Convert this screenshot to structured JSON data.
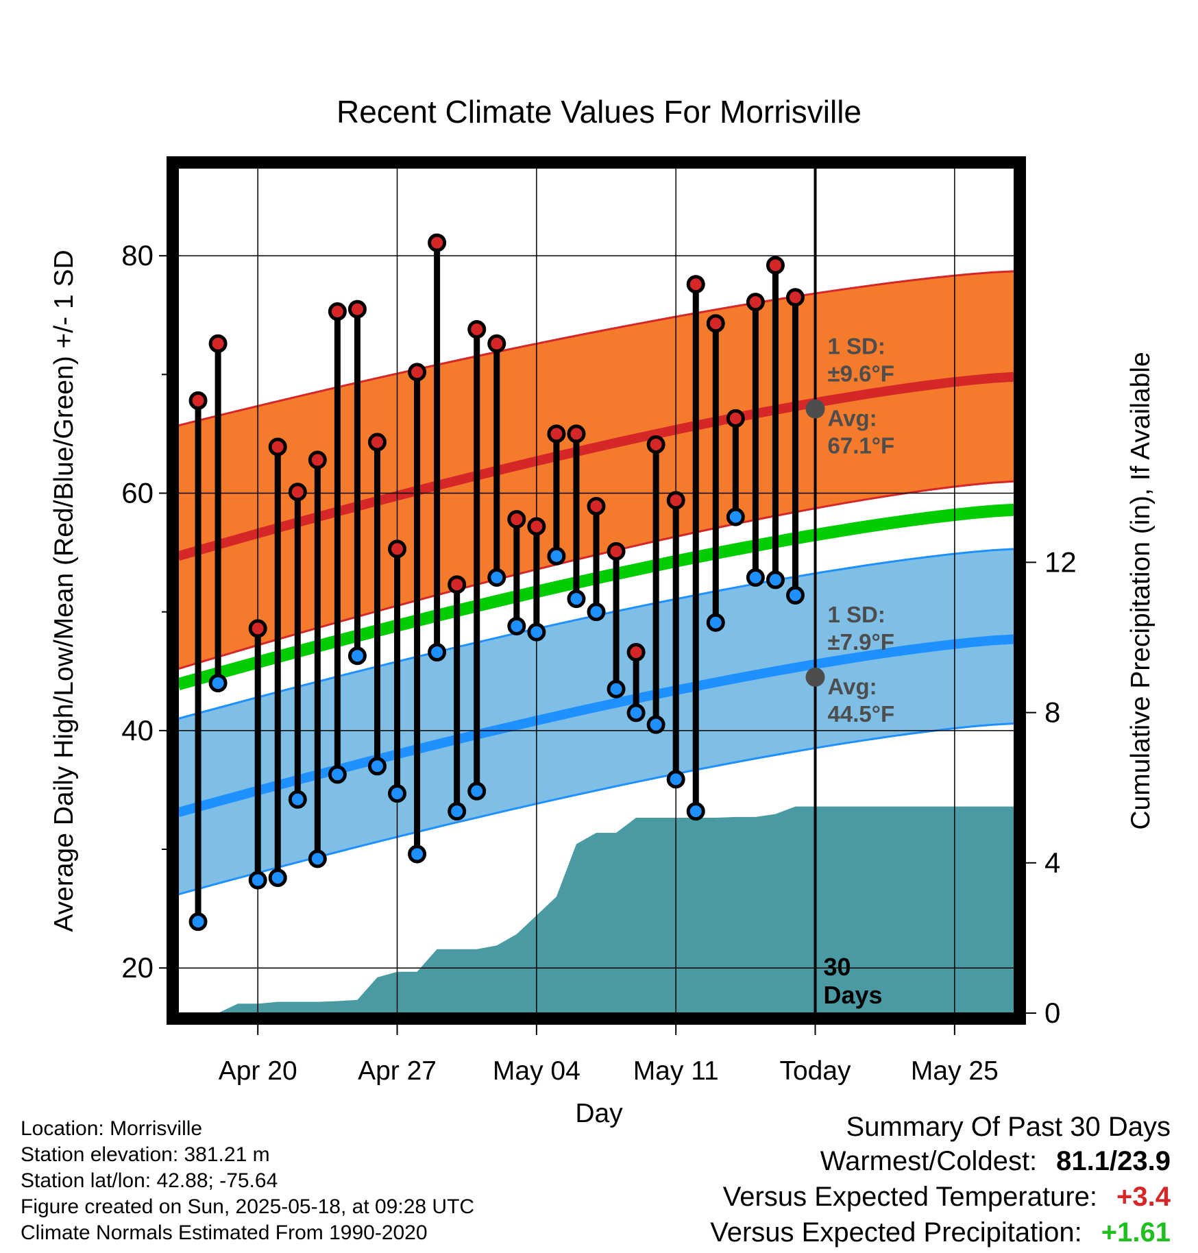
{
  "chart_data": {
    "type": "line",
    "title": "Recent Climate Values For Morrisville",
    "xlabel": "Day",
    "ylabel": "Average Daily High/Low/Mean (Red/Blue/Green) +/- 1 SD",
    "y2label": "Cumulative Precipitation (in), If Available",
    "ylim": [
      16.2,
      87.4
    ],
    "y2lim": [
      0,
      22.5
    ],
    "yticks": [
      "20",
      "40",
      "60",
      "80"
    ],
    "y2ticks": [
      "0",
      "4",
      "8",
      "12"
    ],
    "xlim": [
      "2025-04-16",
      "2025-05-28"
    ],
    "xtick_labels": [
      {
        "date": "2025-04-20",
        "label": "Apr 20"
      },
      {
        "date": "2025-04-27",
        "label": "Apr 27"
      },
      {
        "date": "2025-05-04",
        "label": "May 04"
      },
      {
        "date": "2025-05-11",
        "label": "May 11"
      },
      {
        "date": "2025-05-18",
        "label": "Today"
      },
      {
        "date": "2025-05-25",
        "label": "May 25"
      }
    ],
    "today": "2025-05-18",
    "days_label": "30\nDays",
    "colors": {
      "high": "#d62728",
      "low": "#1e90ff",
      "mean": "#00cc00",
      "high_band": "#f47a2c",
      "low_band": "#7fbfe6",
      "precip": "#4a9aa3",
      "marker_avg": "#4d4d4d",
      "annotation": "#4d4d4d"
    },
    "normal_high": {
      "avg_start": 54.7,
      "avg_end": 69.8,
      "upper_start": 65.7,
      "upper_end": 78.7,
      "lower_start": 45.2,
      "lower_end": 61.0
    },
    "normal_low": {
      "avg_start": 33.1,
      "avg_end": 47.7,
      "upper_start": 41.0,
      "upper_end": 55.3,
      "lower_start": 26.2,
      "lower_end": 40.6
    },
    "normal_mean": {
      "start": 43.9,
      "end": 58.6
    },
    "annotations": {
      "high_sd": "1 SD:",
      "high_sd_val": "±9.6°F",
      "high_avg": "Avg:",
      "high_avg_val": "67.1°F",
      "high_avg_value": 67.1,
      "low_sd": "1 SD:",
      "low_sd_val": "±7.9°F",
      "low_avg": "Avg:",
      "low_avg_val": "44.5°F",
      "low_avg_value": 44.5
    },
    "daily": [
      {
        "date": "2025-04-17",
        "high": 67.8,
        "low": 23.9
      },
      {
        "date": "2025-04-18",
        "high": 72.6,
        "low": 44.0
      },
      {
        "date": "2025-04-20",
        "high": 48.6,
        "low": 27.4
      },
      {
        "date": "2025-04-21",
        "high": 63.9,
        "low": 27.6
      },
      {
        "date": "2025-04-22",
        "high": 60.1,
        "low": 34.2
      },
      {
        "date": "2025-04-23",
        "high": 62.8,
        "low": 29.2
      },
      {
        "date": "2025-04-24",
        "high": 75.3,
        "low": 36.3
      },
      {
        "date": "2025-04-25",
        "high": 75.5,
        "low": 46.3
      },
      {
        "date": "2025-04-26",
        "high": 64.3,
        "low": 37.0
      },
      {
        "date": "2025-04-27",
        "high": 55.3,
        "low": 34.7
      },
      {
        "date": "2025-04-28",
        "high": 70.2,
        "low": 29.6
      },
      {
        "date": "2025-04-29",
        "high": 81.1,
        "low": 46.6
      },
      {
        "date": "2025-04-30",
        "high": 52.3,
        "low": 33.2
      },
      {
        "date": "2025-05-01",
        "high": 73.8,
        "low": 34.9
      },
      {
        "date": "2025-05-02",
        "high": 72.6,
        "low": 52.9
      },
      {
        "date": "2025-05-03",
        "high": 57.8,
        "low": 48.8
      },
      {
        "date": "2025-05-04",
        "high": 57.2,
        "low": 48.3
      },
      {
        "date": "2025-05-05",
        "high": 65.0,
        "low": 54.7
      },
      {
        "date": "2025-05-06",
        "high": 65.0,
        "low": 51.1
      },
      {
        "date": "2025-05-07",
        "high": 58.9,
        "low": 50.0
      },
      {
        "date": "2025-05-08",
        "high": 55.1,
        "low": 43.5
      },
      {
        "date": "2025-05-09",
        "high": 46.6,
        "low": 41.5
      },
      {
        "date": "2025-05-10",
        "high": 64.1,
        "low": 40.5
      },
      {
        "date": "2025-05-11",
        "high": 59.4,
        "low": 35.9
      },
      {
        "date": "2025-05-12",
        "high": 77.6,
        "low": 33.2
      },
      {
        "date": "2025-05-13",
        "high": 74.3,
        "low": 49.1
      },
      {
        "date": "2025-05-14",
        "high": 66.3,
        "low": 58.0
      },
      {
        "date": "2025-05-15",
        "high": 76.1,
        "low": 52.9
      },
      {
        "date": "2025-05-16",
        "high": 79.2,
        "low": 52.7
      },
      {
        "date": "2025-05-17",
        "high": 76.5,
        "low": 51.4
      }
    ],
    "precip_cumulative": {
      "x": [
        "2025-04-16",
        "2025-04-17",
        "2025-04-18",
        "2025-04-19",
        "2025-04-20",
        "2025-04-21",
        "2025-04-22",
        "2025-04-23",
        "2025-04-24",
        "2025-04-25",
        "2025-04-26",
        "2025-04-27",
        "2025-04-28",
        "2025-04-29",
        "2025-04-30",
        "2025-05-01",
        "2025-05-02",
        "2025-05-03",
        "2025-05-04",
        "2025-05-05",
        "2025-05-06",
        "2025-05-07",
        "2025-05-08",
        "2025-05-09",
        "2025-05-10",
        "2025-05-11",
        "2025-05-12",
        "2025-05-13",
        "2025-05-14",
        "2025-05-15",
        "2025-05-16",
        "2025-05-17",
        "2025-05-18",
        "2025-05-28"
      ],
      "values": [
        0.0,
        0.0,
        0.0,
        0.25,
        0.25,
        0.3,
        0.3,
        0.3,
        0.32,
        0.35,
        0.95,
        1.1,
        1.1,
        1.7,
        1.7,
        1.7,
        1.8,
        2.1,
        2.6,
        3.1,
        4.5,
        4.8,
        4.8,
        5.2,
        5.2,
        5.2,
        5.2,
        5.2,
        5.22,
        5.22,
        5.3,
        5.5,
        5.5,
        5.5
      ]
    }
  },
  "info": {
    "location": "Location: Morrisville",
    "elevation": "Station elevation: 381.21 m",
    "latlon": "Station lat/lon: 42.88; -75.64",
    "created": "Figure created on Sun, 2025-05-18, at 09:28 UTC",
    "normals": "Climate Normals Estimated From 1990-2020"
  },
  "summary": {
    "title": "Summary Of Past 30 Days",
    "warm_cold_label": "Warmest/Coldest:",
    "warm_cold_value": "81.1/23.9",
    "temp_label": "Versus Expected Temperature:",
    "temp_value": "+3.4",
    "temp_color": "#d62728",
    "precip_label": "Versus Expected Precipitation:",
    "precip_value": "+1.61",
    "precip_color": "#1fbf1f"
  }
}
